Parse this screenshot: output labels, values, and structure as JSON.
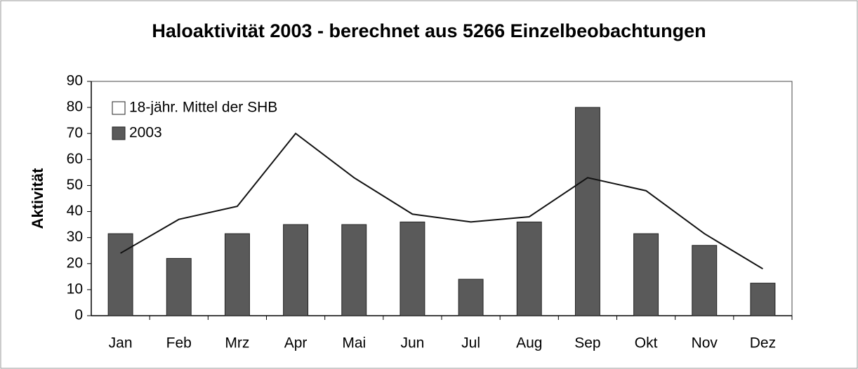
{
  "chart_data": {
    "type": "bar",
    "title": "Haloaktivität 2003 - berechnet aus 5266 Einzelbeobachtungen",
    "y_label": "Aktivität",
    "categories": [
      "Jan",
      "Feb",
      "Mrz",
      "Apr",
      "Mai",
      "Jun",
      "Jul",
      "Aug",
      "Sep",
      "Okt",
      "Nov",
      "Dez"
    ],
    "series": [
      {
        "name": "18-jähr. Mittel der SHB",
        "type": "line",
        "color": "#111111",
        "values": [
          24,
          37,
          42,
          70,
          53,
          39,
          36,
          38,
          53,
          48,
          31.5,
          18
        ]
      },
      {
        "name": "2003",
        "type": "bar",
        "color": "#5a5a5a",
        "values": [
          31.5,
          22,
          31.5,
          35,
          35,
          36,
          14,
          36,
          80,
          31.5,
          27,
          12.5
        ]
      }
    ],
    "ylim": [
      0,
      90
    ],
    "yticks": [
      0,
      10,
      20,
      30,
      40,
      50,
      60,
      70,
      80,
      90
    ],
    "legend": "upper left"
  }
}
